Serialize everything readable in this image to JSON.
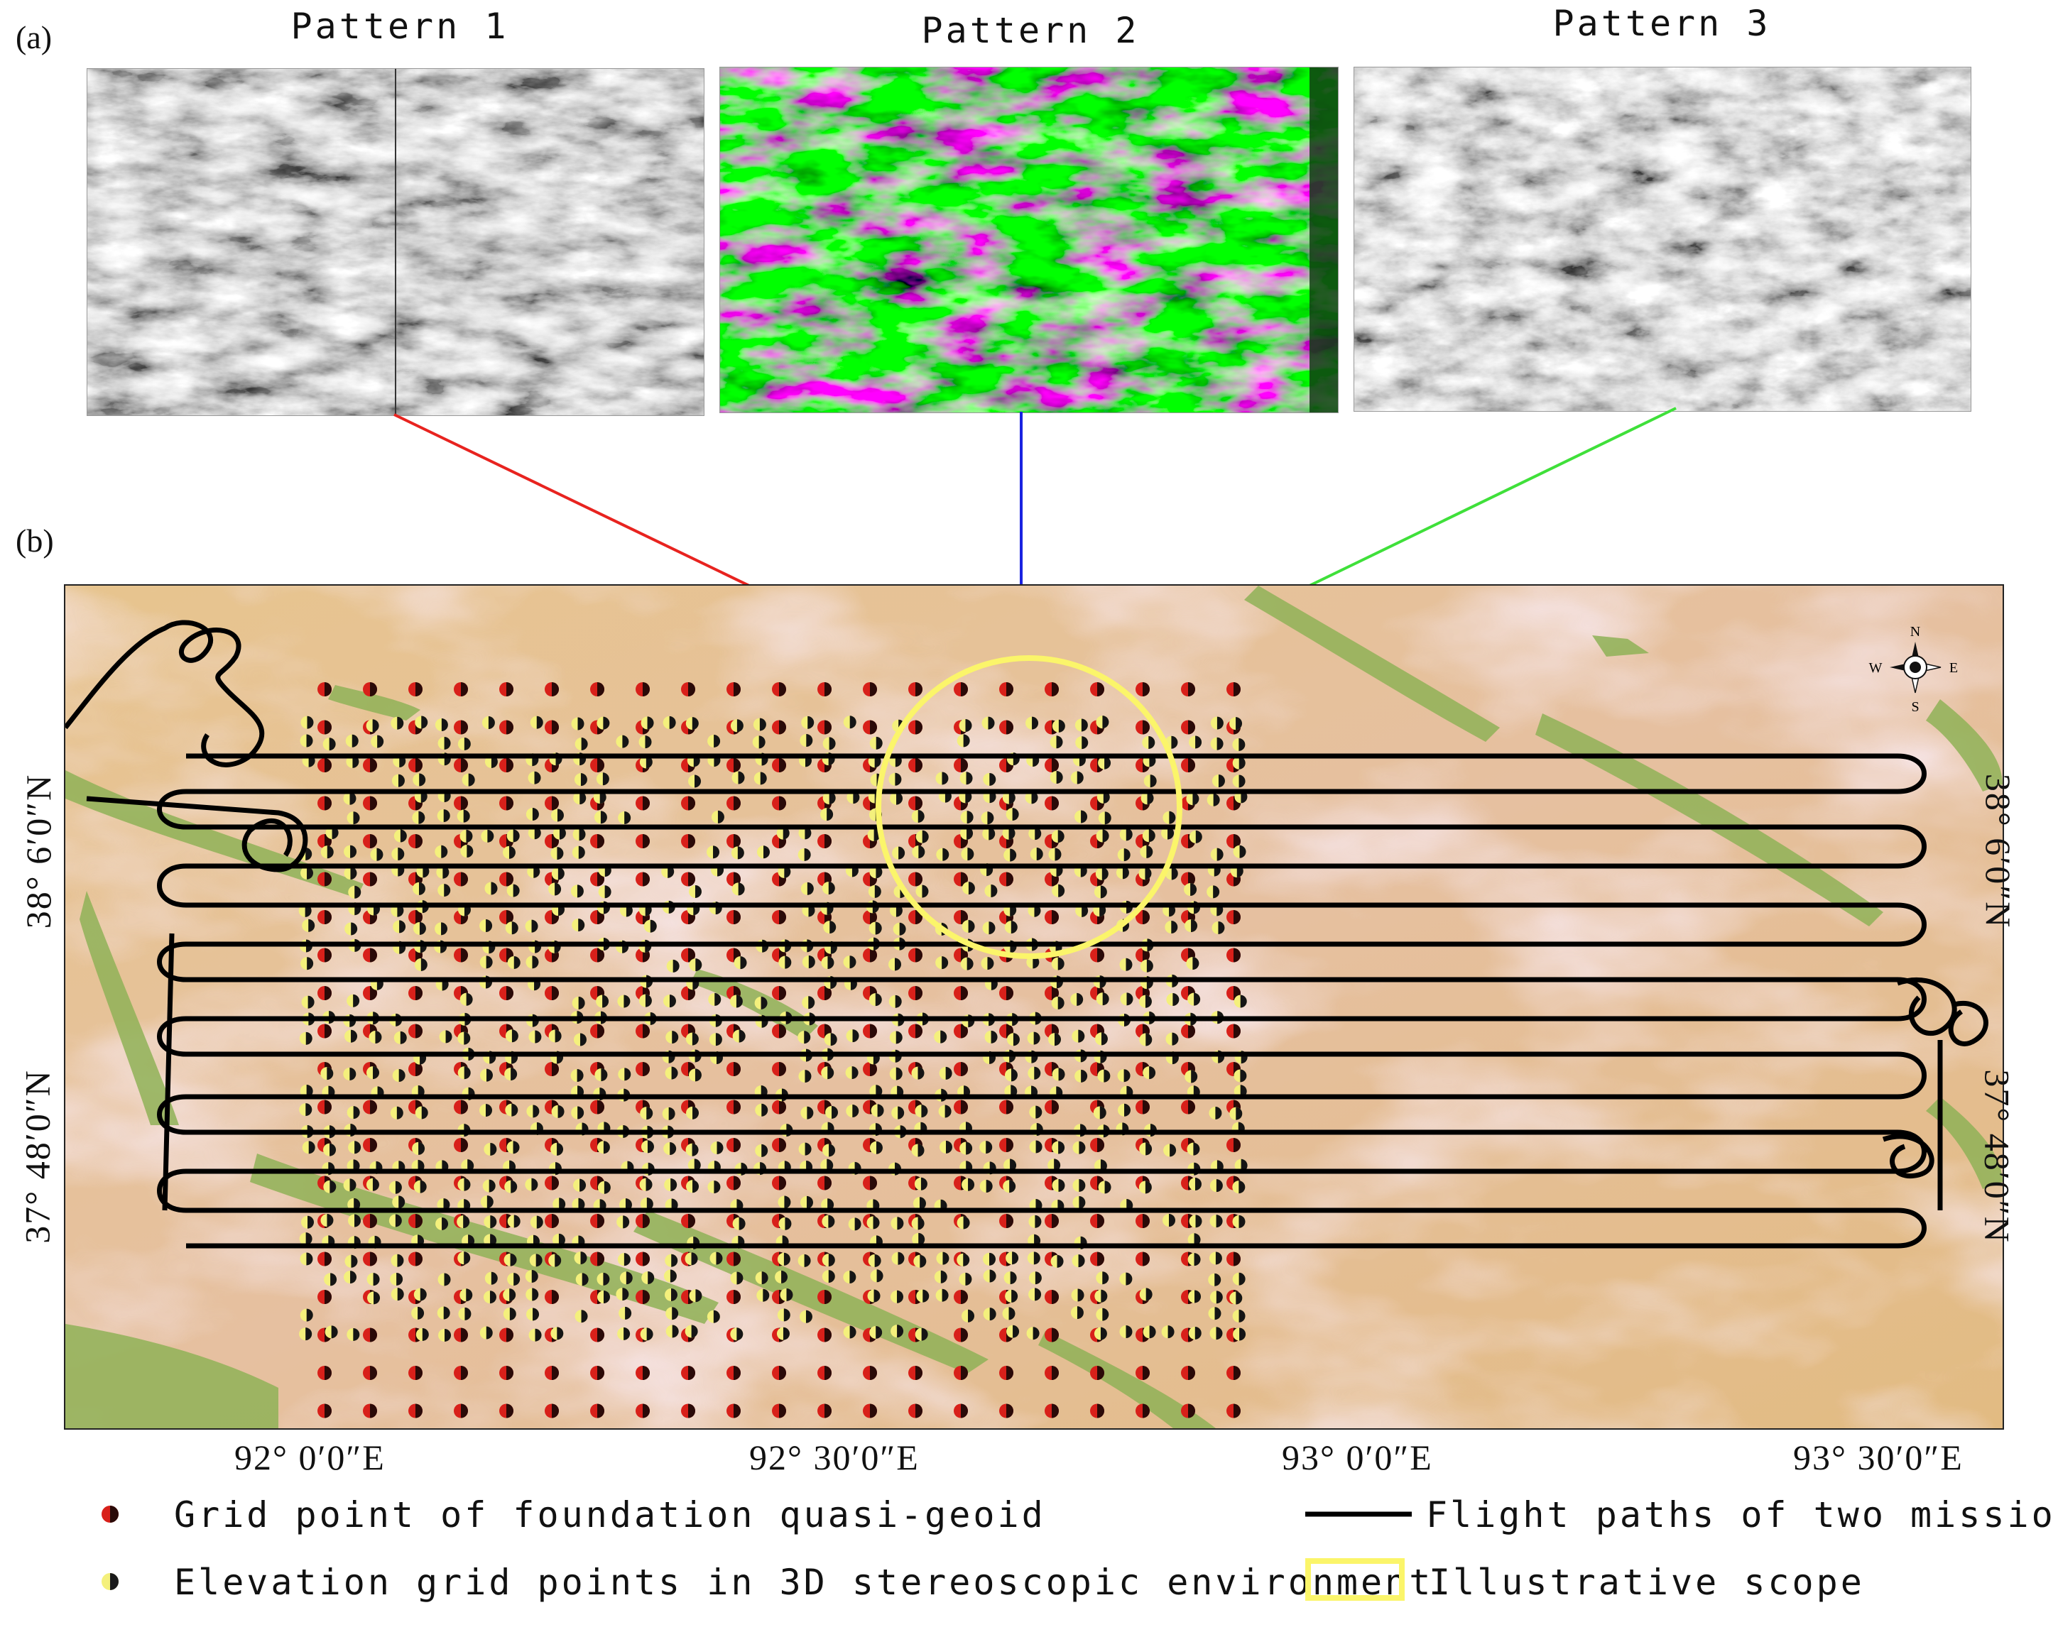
{
  "panels": {
    "a": "(a)",
    "b": "(b)"
  },
  "patterns": [
    {
      "title": "Pattern 1",
      "kind": "grayscale stereo pair"
    },
    {
      "title": "Pattern 2",
      "kind": "green-magenta anaglyph"
    },
    {
      "title": "Pattern 3",
      "kind": "grayscale"
    }
  ],
  "connector_colors": {
    "pattern1": "#e8231f",
    "pattern2": "#1a22e0",
    "pattern3": "#3fe03a"
  },
  "map": {
    "left_lat_labels": [
      "38° 6′0″N",
      "37° 48′0″N"
    ],
    "right_lat_labels": [
      "38° 6′0″N",
      "37° 48′0″N"
    ],
    "lon_labels": [
      "92° 0′0″E",
      "92° 30′0″E",
      "93° 0′0″E",
      "93° 30′0″E"
    ],
    "compass": {
      "n": "N",
      "s": "S",
      "e": "E",
      "w": "W"
    },
    "colors": {
      "terrain_base": "#e3bf8a",
      "terrain_pink": "#eac9cf",
      "terrain_green": "#8fb257",
      "scope": "#fbf56a",
      "red_point": "#d8201a",
      "yellow_point": "#f4f07c",
      "flight": "#000000"
    }
  },
  "legend": {
    "grid_point_label": "Grid point of foundation quasi-geoid",
    "elevation_point_label": "Elevation grid points in 3D stereoscopic environment",
    "flight_path_label": "Flight paths of two missions",
    "scope_label": "Illustrative scope"
  }
}
